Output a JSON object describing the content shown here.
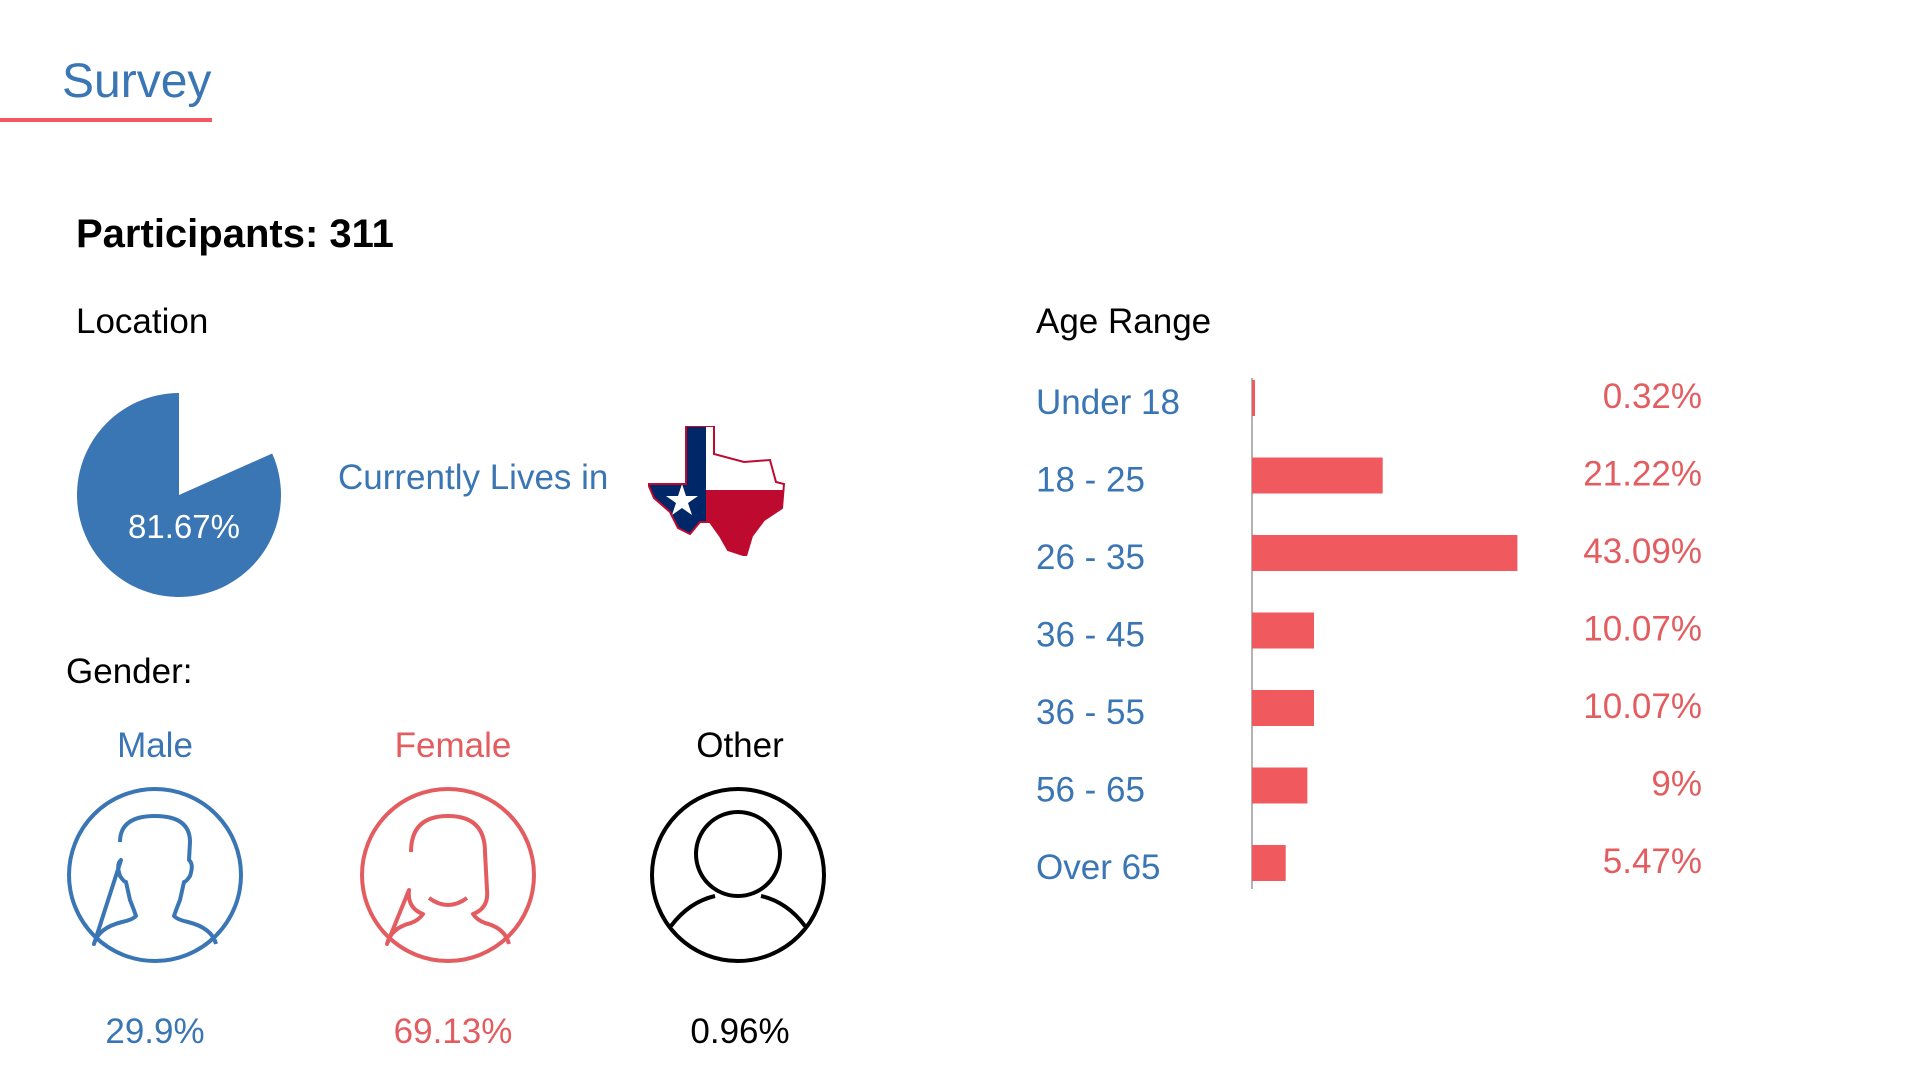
{
  "header": {
    "title": "Survey"
  },
  "participants": "Participants: 311",
  "location": {
    "label": "Location",
    "percent_value": 81.67,
    "percent_label": "81.67%",
    "text": "Currently Lives in",
    "color": "#3a75b4",
    "icon": "texas-flag-map-icon"
  },
  "gender": {
    "label": "Gender:",
    "items": [
      {
        "label": "Male",
        "value": "29.9%",
        "color": "#3a75b4",
        "icon": "male-avatar-icon"
      },
      {
        "label": "Female",
        "value": "69.13%",
        "color": "#e35d60",
        "icon": "female-avatar-icon"
      },
      {
        "label": "Other",
        "value": "0.96%",
        "color": "#000000",
        "icon": "person-avatar-icon"
      }
    ]
  },
  "age": {
    "label": "Age Range"
  },
  "chart_data": {
    "type": "bar",
    "orientation": "horizontal",
    "title": "Age Range",
    "categories": [
      "Under 18",
      "18 - 25",
      "26 - 35",
      "36 - 45",
      "36 - 55",
      "56 - 65",
      "Over 65"
    ],
    "values": [
      0.32,
      21.22,
      43.09,
      10.07,
      10.07,
      9,
      5.47
    ],
    "value_labels": [
      "0.32%",
      "21.22%",
      "43.09%",
      "10.07%",
      "10.07%",
      "9%",
      "5.47%"
    ],
    "bar_color": "#f05a5f",
    "category_color": "#3a75b4",
    "label_color": "#e35d60",
    "grid": false
  }
}
